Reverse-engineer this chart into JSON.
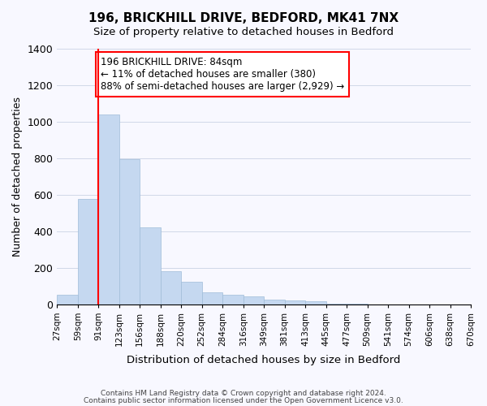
{
  "title": "196, BRICKHILL DRIVE, BEDFORD, MK41 7NX",
  "subtitle": "Size of property relative to detached houses in Bedford",
  "xlabel": "Distribution of detached houses by size in Bedford",
  "ylabel": "Number of detached properties",
  "bin_labels": [
    "27sqm",
    "59sqm",
    "91sqm",
    "123sqm",
    "156sqm",
    "188sqm",
    "220sqm",
    "252sqm",
    "284sqm",
    "316sqm",
    "349sqm",
    "381sqm",
    "413sqm",
    "445sqm",
    "477sqm",
    "509sqm",
    "541sqm",
    "574sqm",
    "606sqm",
    "638sqm",
    "670sqm"
  ],
  "bar_values": [
    50,
    575,
    1040,
    795,
    420,
    180,
    125,
    65,
    50,
    45,
    25,
    20,
    15,
    5,
    3,
    0,
    0,
    0,
    0,
    0
  ],
  "bar_color": "#c5d8f0",
  "bar_edge_color": "#a0bcd8",
  "vline_color": "red",
  "annotation_text": "196 BRICKHILL DRIVE: 84sqm\n← 11% of detached houses are smaller (380)\n88% of semi-detached houses are larger (2,929) →",
  "annotation_box_color": "white",
  "annotation_box_edge": "red",
  "ylim": [
    0,
    1400
  ],
  "yticks": [
    0,
    200,
    400,
    600,
    800,
    1000,
    1200,
    1400
  ],
  "footer1": "Contains HM Land Registry data © Crown copyright and database right 2024.",
  "footer2": "Contains public sector information licensed under the Open Government Licence v3.0.",
  "bg_color": "#f8f8ff"
}
